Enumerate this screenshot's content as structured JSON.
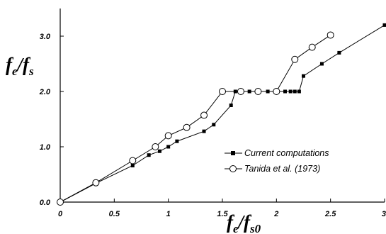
{
  "chart_data": {
    "type": "line",
    "xlabel": {
      "main": "f",
      "sub1": "e",
      "sep": "/f",
      "sub2": "s0"
    },
    "ylabel": {
      "main": "f",
      "sub1": "e",
      "sep": "/f",
      "sub2": "s"
    },
    "xlim": [
      0,
      3
    ],
    "ylim": [
      0,
      3.5
    ],
    "x_ticks": [
      {
        "value": 0,
        "label": "0"
      },
      {
        "value": 0.5,
        "label": "0.5"
      },
      {
        "value": 1,
        "label": "1"
      },
      {
        "value": 1.5,
        "label": "1.5"
      },
      {
        "value": 2,
        "label": "2"
      },
      {
        "value": 2.5,
        "label": "2.5"
      },
      {
        "value": 3,
        "label": "3"
      }
    ],
    "y_ticks": [
      {
        "value": 0,
        "label": "0.0"
      },
      {
        "value": 1,
        "label": "1.0"
      },
      {
        "value": 2,
        "label": "2.0"
      },
      {
        "value": 3,
        "label": "3.0"
      }
    ],
    "legend_position": "lower-right",
    "series": [
      {
        "name": "Current computations",
        "marker": "filled-square",
        "color": "#000000",
        "x": [
          0,
          0.34,
          0.67,
          0.82,
          0.92,
          1.0,
          1.08,
          1.33,
          1.42,
          1.58,
          1.62,
          1.67,
          1.75,
          1.83,
          1.92,
          2.0,
          2.08,
          2.13,
          2.17,
          2.21,
          2.25,
          2.42,
          2.58,
          3.0
        ],
        "y": [
          0,
          0.35,
          0.66,
          0.85,
          0.92,
          1.0,
          1.1,
          1.28,
          1.4,
          1.75,
          2.0,
          2.0,
          2.0,
          2.0,
          2.0,
          2.0,
          2.0,
          2.0,
          2.0,
          2.0,
          2.28,
          2.5,
          2.7,
          3.2
        ]
      },
      {
        "name": "Tanida et al. (1973)",
        "marker": "open-circle",
        "color": "#000000",
        "x": [
          0,
          0.33,
          0.67,
          0.88,
          1.0,
          1.17,
          1.33,
          1.5,
          1.67,
          1.83,
          2.0,
          2.17,
          2.33,
          2.5
        ],
        "y": [
          0,
          0.35,
          0.75,
          1.0,
          1.2,
          1.35,
          1.57,
          2.0,
          2.0,
          2.0,
          2.0,
          2.58,
          2.8,
          3.02
        ]
      }
    ]
  }
}
